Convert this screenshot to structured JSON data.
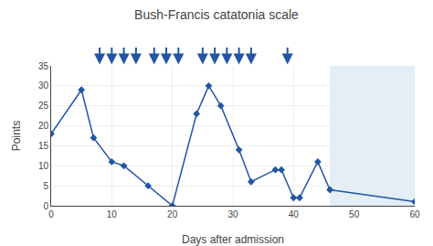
{
  "chart_data": {
    "type": "line",
    "title": "Bush-Francis catatonia scale",
    "x_label": "Days after admission",
    "y_label": "Points",
    "x": [
      0,
      5,
      7,
      10,
      12,
      16,
      20,
      24,
      26,
      28,
      31,
      33,
      37,
      38,
      40,
      41,
      44,
      46,
      60
    ],
    "values": [
      18,
      29,
      17,
      11,
      10,
      5,
      0,
      23,
      30,
      25,
      14,
      6,
      9,
      9,
      2,
      2,
      11,
      4,
      1
    ],
    "color": "#2255a4",
    "marker": "diamond",
    "xlim": [
      0,
      60
    ],
    "ylim": [
      0,
      35
    ],
    "xticks": [
      0,
      10,
      20,
      30,
      40,
      50,
      60
    ],
    "yticks": [
      0,
      5,
      10,
      15,
      20,
      25,
      30,
      35
    ],
    "grid": true,
    "shaded_region": {
      "x": [
        46,
        60
      ],
      "color": "#cce0f0"
    },
    "arrows": {
      "x": [
        8,
        10,
        12,
        14,
        17,
        19,
        21,
        25,
        27,
        29,
        31,
        33,
        39
      ],
      "color": "#2255a4"
    }
  }
}
